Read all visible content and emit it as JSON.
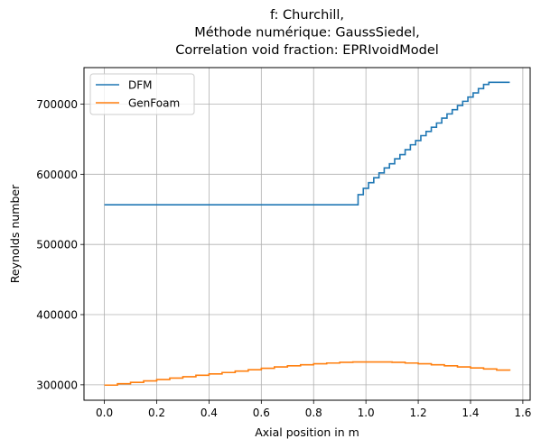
{
  "chart_data": {
    "type": "line",
    "title_lines": [
      "f: Churchill,",
      "Méthode numérique: GaussSiedel,",
      "Correlation void fraction: EPRIvoidModel"
    ],
    "xlabel": "Axial position in m",
    "ylabel": "Reynolds number",
    "xlim": [
      -0.078,
      1.628
    ],
    "ylim": [
      278000,
      752000
    ],
    "xticks": [
      0.0,
      0.2,
      0.4,
      0.6,
      0.8,
      1.0,
      1.2,
      1.4,
      1.6
    ],
    "xtick_labels": [
      "0.0",
      "0.2",
      "0.4",
      "0.6",
      "0.8",
      "1.0",
      "1.2",
      "1.4",
      "1.6"
    ],
    "yticks": [
      300000,
      400000,
      500000,
      600000,
      700000
    ],
    "ytick_labels": [
      "300000",
      "400000",
      "500000",
      "600000",
      "700000"
    ],
    "grid": true,
    "legend_position": "top-left",
    "series": [
      {
        "name": "DFM",
        "color": "#1f77b4",
        "step": true,
        "x": [
          0.0,
          0.97,
          0.99,
          1.01,
          1.03,
          1.05,
          1.07,
          1.09,
          1.11,
          1.13,
          1.15,
          1.17,
          1.19,
          1.21,
          1.23,
          1.25,
          1.27,
          1.29,
          1.31,
          1.33,
          1.35,
          1.37,
          1.39,
          1.41,
          1.43,
          1.45,
          1.47,
          1.49,
          1.51,
          1.53,
          1.55
        ],
        "y": [
          556500,
          571000,
          580000,
          588000,
          595000,
          602000,
          609000,
          615000,
          622000,
          628000,
          635000,
          642000,
          648000,
          655000,
          661000,
          667000,
          673000,
          680000,
          686000,
          692000,
          698000,
          704000,
          710000,
          716000,
          722000,
          728000,
          731000,
          731000,
          731000,
          731000,
          731000
        ]
      },
      {
        "name": "GenFoam",
        "color": "#ff7f0e",
        "step": true,
        "x": [
          0.0,
          0.05,
          0.1,
          0.15,
          0.2,
          0.25,
          0.3,
          0.35,
          0.4,
          0.45,
          0.5,
          0.55,
          0.6,
          0.65,
          0.7,
          0.75,
          0.8,
          0.85,
          0.9,
          0.95,
          1.0,
          1.05,
          1.1,
          1.15,
          1.2,
          1.25,
          1.3,
          1.35,
          1.4,
          1.45,
          1.5,
          1.55
        ],
        "y": [
          299500,
          301500,
          303500,
          305500,
          307500,
          309500,
          311500,
          313500,
          315500,
          317500,
          319500,
          321500,
          323500,
          325500,
          327000,
          328500,
          330000,
          331000,
          332000,
          332500,
          332500,
          332500,
          332000,
          331000,
          330000,
          328500,
          327000,
          325500,
          324000,
          322500,
          321000,
          320000
        ]
      }
    ]
  }
}
